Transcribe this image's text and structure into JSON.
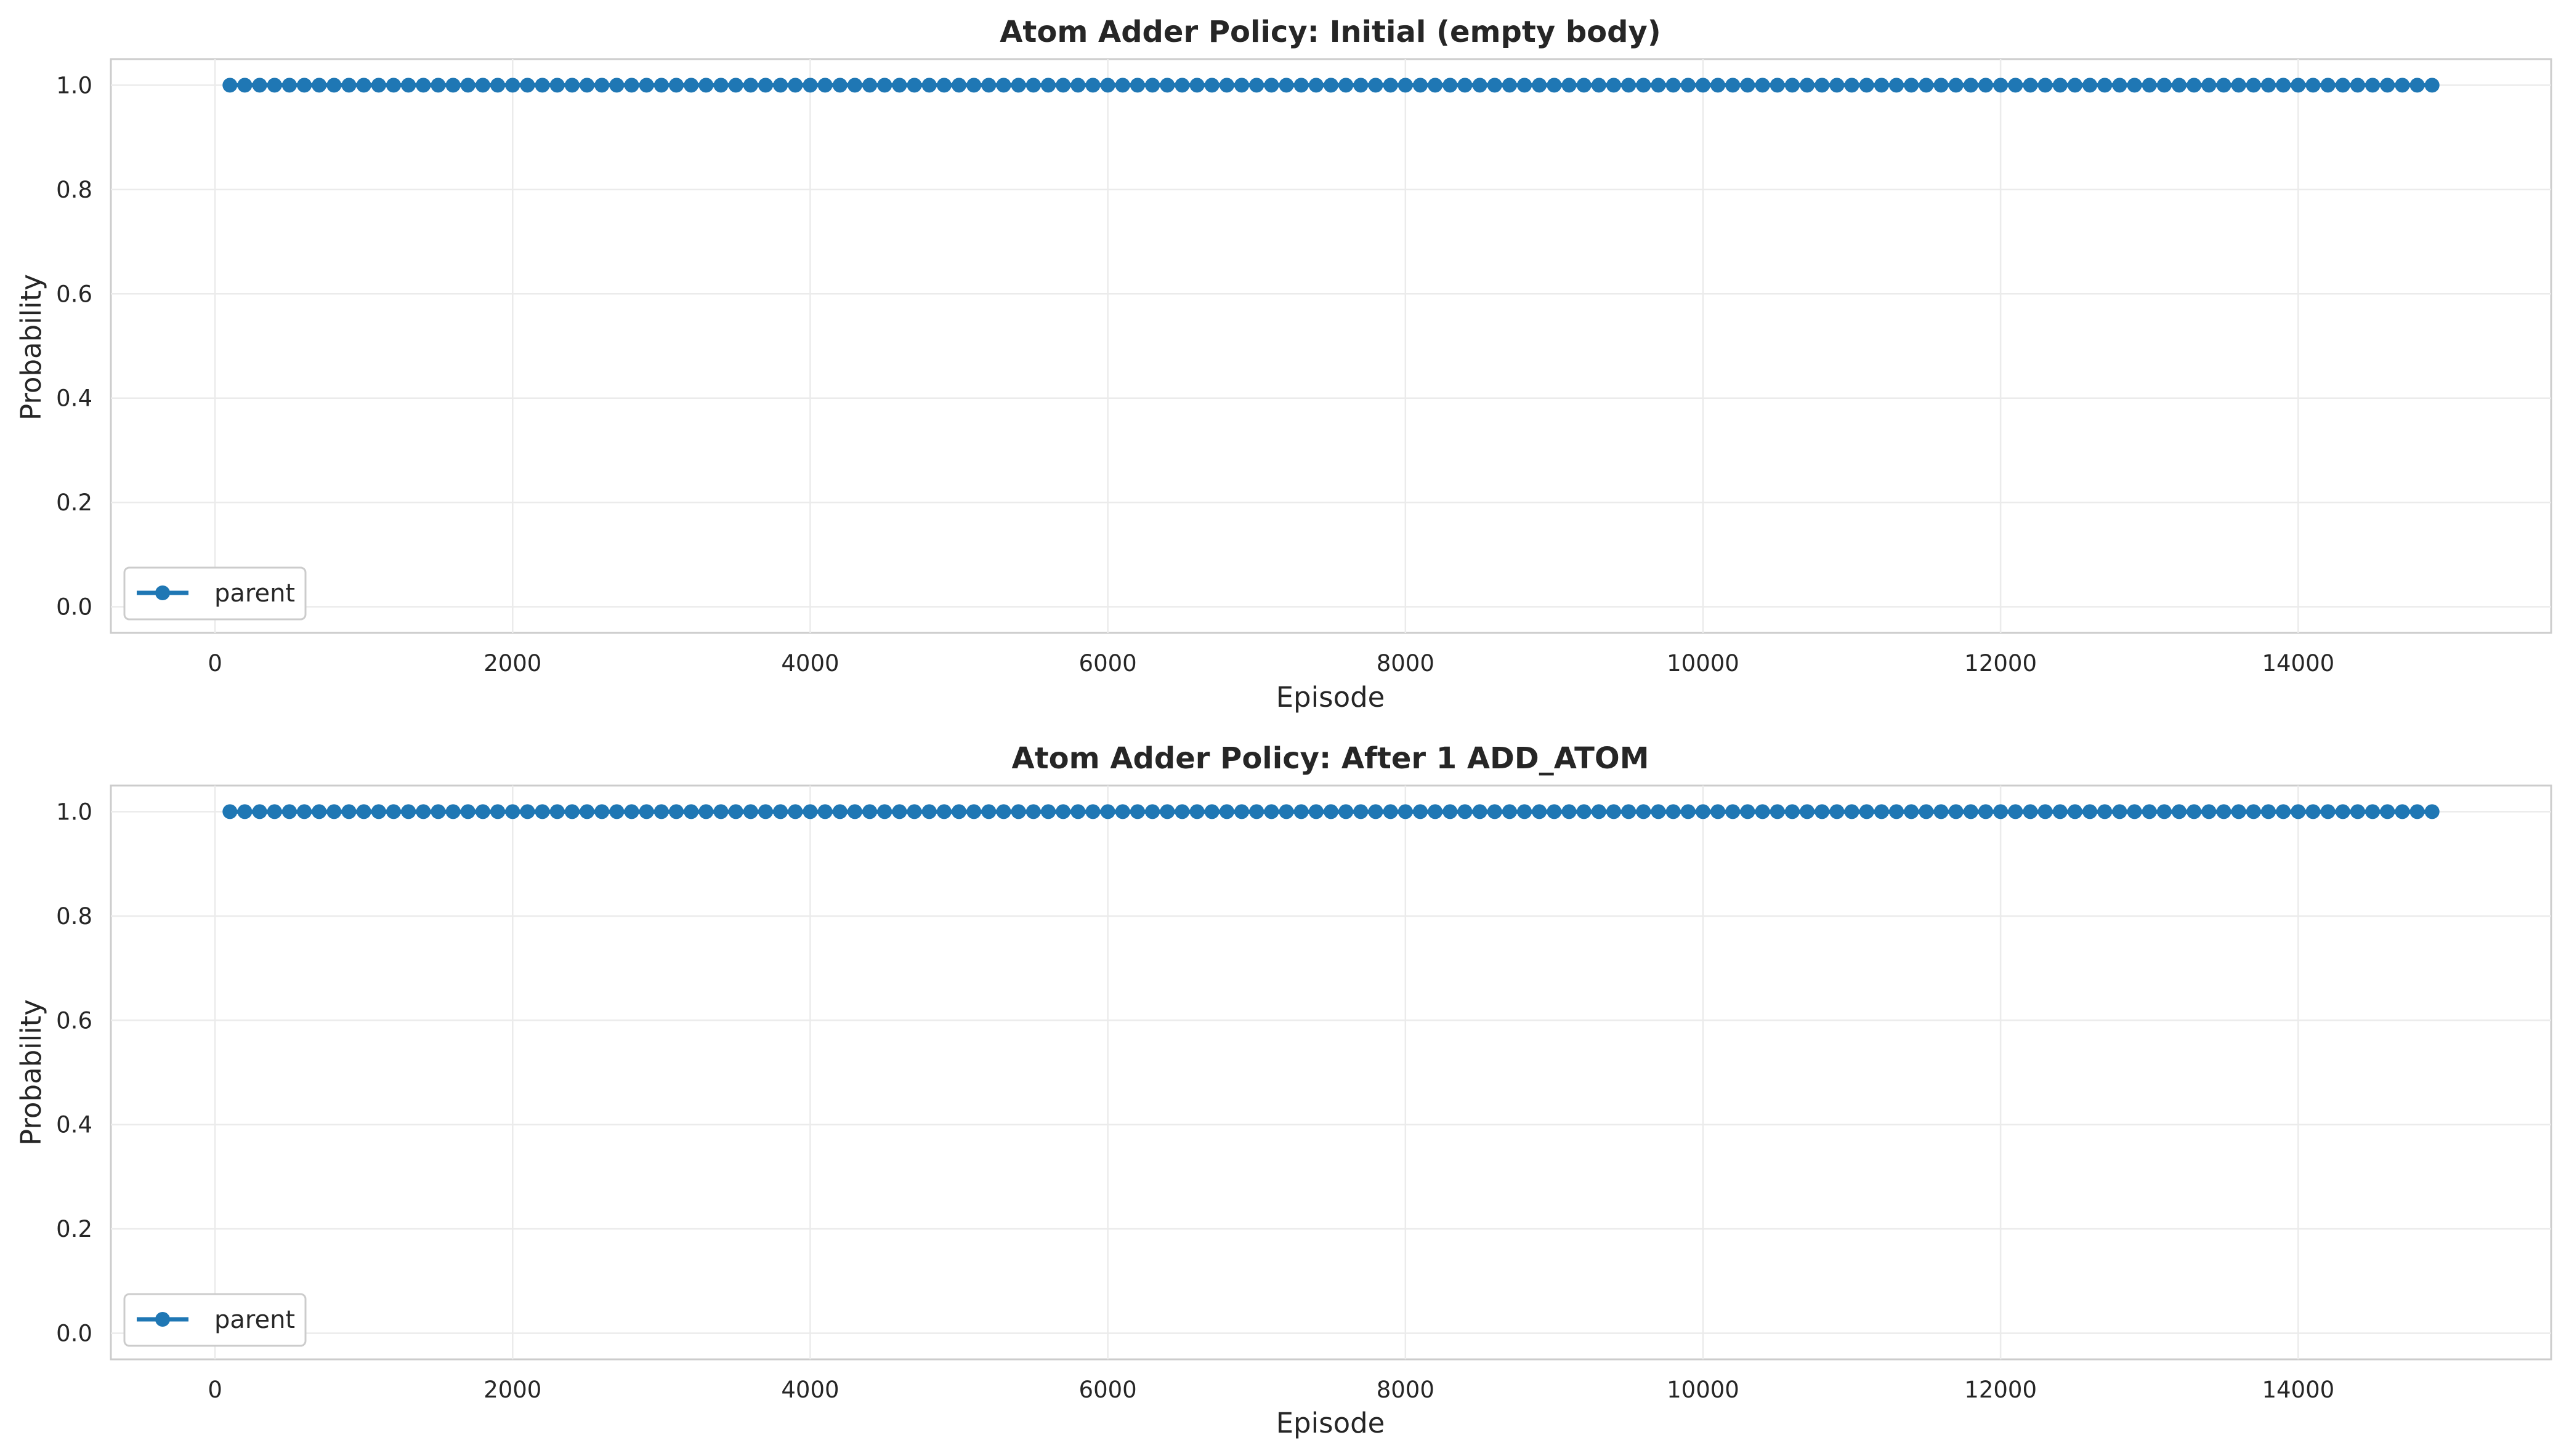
{
  "chart_data": [
    {
      "type": "line",
      "title": "Atom Adder Policy: Initial (empty body)",
      "xlabel": "Episode",
      "ylabel": "Probability",
      "xlim": [
        -700,
        15700
      ],
      "ylim": [
        -0.05,
        1.05
      ],
      "xticks": [
        "0",
        "2000",
        "4000",
        "6000",
        "8000",
        "10000",
        "12000",
        "14000"
      ],
      "yticks": [
        "0.0",
        "0.2",
        "0.4",
        "0.6",
        "0.8",
        "1.0"
      ],
      "grid": true,
      "legend_position": "lower-left",
      "series": [
        {
          "name": "parent",
          "color": "#1f77b4",
          "marker": "circle",
          "x_start": 100,
          "x_step": 100,
          "x_end": 14900,
          "y_constant": 1.0
        }
      ]
    },
    {
      "type": "line",
      "title": "Atom Adder Policy: After 1 ADD_ATOM",
      "xlabel": "Episode",
      "ylabel": "Probability",
      "xlim": [
        -700,
        15700
      ],
      "ylim": [
        -0.05,
        1.05
      ],
      "xticks": [
        "0",
        "2000",
        "4000",
        "6000",
        "8000",
        "10000",
        "12000",
        "14000"
      ],
      "yticks": [
        "0.0",
        "0.2",
        "0.4",
        "0.6",
        "0.8",
        "1.0"
      ],
      "grid": true,
      "legend_position": "lower-left",
      "series": [
        {
          "name": "parent",
          "color": "#1f77b4",
          "marker": "circle",
          "x_start": 100,
          "x_step": 100,
          "x_end": 14900,
          "y_constant": 1.0
        }
      ]
    }
  ]
}
